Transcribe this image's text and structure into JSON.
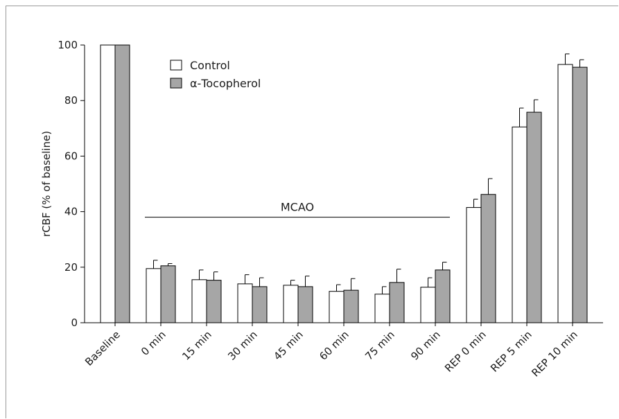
{
  "chart_data": {
    "type": "bar",
    "title": "",
    "xlabel": "",
    "ylabel": "rCBF (% of baseline)",
    "ylim": [
      0,
      100
    ],
    "yticks": [
      0,
      20,
      40,
      60,
      80,
      100
    ],
    "categories": [
      "Baseline",
      "0 min",
      "15 min",
      "30 min",
      "45 min",
      "60 min",
      "75 min",
      "90 min",
      "REP 0 min",
      "REP 5 min",
      "REP 10 min"
    ],
    "series": [
      {
        "name": "Control",
        "color": "#ffffff",
        "values": [
          100,
          19.5,
          15.5,
          14,
          13.5,
          11.3,
          10.3,
          12.8,
          41.5,
          70.5,
          93
        ],
        "errors": [
          0,
          3,
          3.5,
          3.3,
          1.8,
          2.4,
          2.7,
          3.4,
          3,
          6.8,
          3.8
        ]
      },
      {
        "name": "α-Tocopherol",
        "color": "#a6a6a6",
        "values": [
          100,
          20.5,
          15.3,
          13,
          13,
          11.7,
          14.5,
          19,
          46.2,
          75.8,
          92
        ],
        "errors": [
          0,
          0.8,
          3,
          3.2,
          3.8,
          4.2,
          4.8,
          2.8,
          5.7,
          4.5,
          2.7
        ]
      }
    ],
    "annotation": {
      "text": "MCAO",
      "from_category": "0 min",
      "to_category": "90 min",
      "y": 38
    },
    "legend": {
      "placement": "top-left"
    },
    "grid": false
  }
}
